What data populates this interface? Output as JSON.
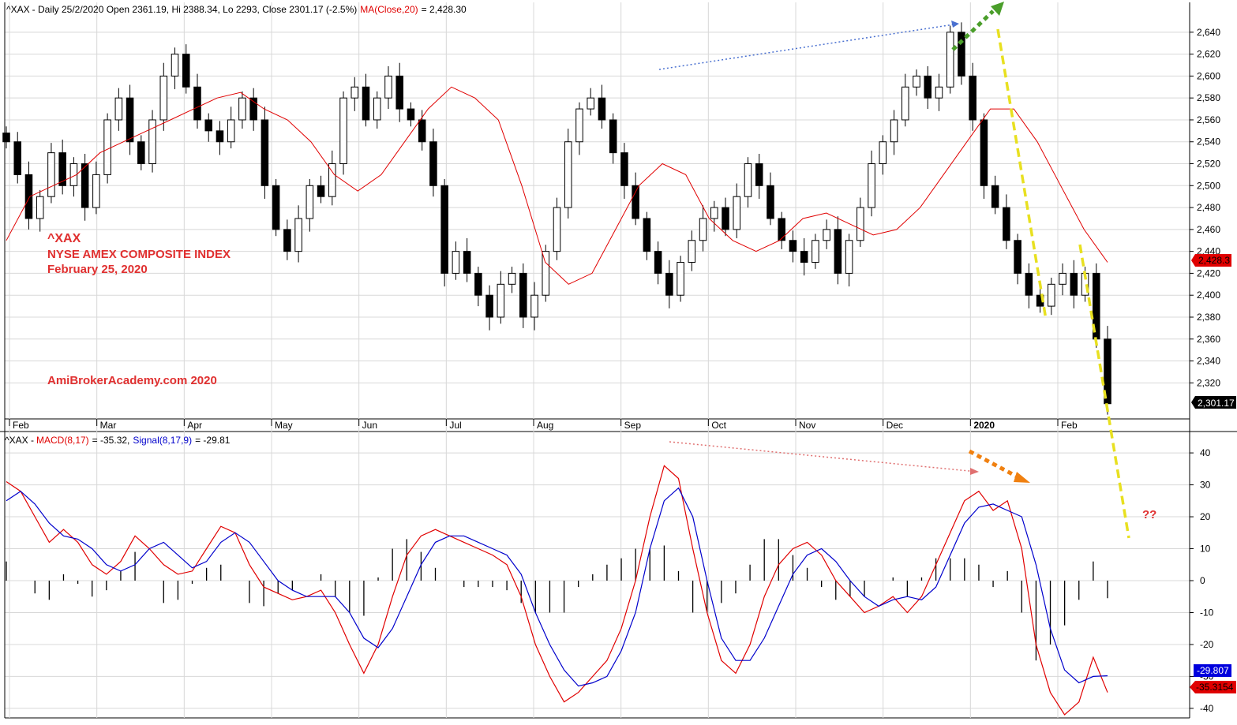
{
  "header": {
    "symbol": "^XAX",
    "info": "- Daily 25/2/2020 Open 2361.19, Hi 2388.34, Lo 2293, Close 2301.17 (-2.5%)",
    "ma_label": "MA(Close,20)",
    "ma_value": "= 2,428.30"
  },
  "macd_header": {
    "symbol": "^XAX -",
    "macd_label": "MACD(8,17)",
    "macd_value": "= -35.32,",
    "signal_label": "Signal(8,17,9)",
    "signal_value": "= -29.81"
  },
  "annotations": {
    "ticker": "^XAX",
    "index_name": "NYSE AMEX COMPOSITE INDEX",
    "date": "February 25, 2020",
    "watermark": "AmiBrokerAcademy.com  2020",
    "question": "??"
  },
  "badges": {
    "ma_price": "2,428.3",
    "last_price": "2,301.17",
    "signal_value": "-29.807",
    "macd_value": "-35.3154"
  },
  "colors": {
    "candle": "#000000",
    "ma_line": "#e00000",
    "macd_line": "#e00000",
    "signal_line": "#0000cc",
    "histogram": "#000000",
    "trend_yellow": "#e8e020",
    "arrow_green": "#4a9e2a",
    "arrow_orange": "#f08010",
    "divergence_blue": "#4a70d0",
    "divergence_red": "#e07070",
    "note_red": "#e03030",
    "grid": "#d8d8d8"
  },
  "chart_data": [
    {
      "type": "candlestick",
      "title": "^XAX - Daily 25/2/2020",
      "x_labels": [
        "Feb",
        "Mar",
        "Apr",
        "May",
        "Jun",
        "Jul",
        "Aug",
        "Sep",
        "Oct",
        "Nov",
        "Dec",
        "2020",
        "Feb"
      ],
      "y_ticks": [
        2320,
        2340,
        2360,
        2380,
        2400,
        2420,
        2440,
        2460,
        2480,
        2500,
        2520,
        2540,
        2560,
        2580,
        2600,
        2620,
        2640
      ],
      "y_tick_labels": [
        "2,320",
        "2,340",
        "2,360",
        "2,380",
        "2,400",
        "2,420",
        "2,440",
        "2,460",
        "2,480",
        "2,500",
        "2,520",
        "2,540",
        "2,560",
        "2,580",
        "2,600",
        "2,620",
        "2,640"
      ],
      "ylim": [
        2290,
        2655
      ],
      "series": [
        {
          "name": "^XAX close (approx. trajectory)",
          "values": [
            2540,
            2510,
            2470,
            2490,
            2530,
            2500,
            2520,
            2480,
            2510,
            2560,
            2580,
            2540,
            2520,
            2560,
            2600,
            2620,
            2590,
            2560,
            2550,
            2540,
            2560,
            2580,
            2560,
            2500,
            2460,
            2440,
            2470,
            2500,
            2490,
            2520,
            2580,
            2590,
            2560,
            2580,
            2600,
            2570,
            2560,
            2540,
            2500,
            2420,
            2440,
            2420,
            2400,
            2380,
            2410,
            2420,
            2380,
            2400,
            2440,
            2480,
            2540,
            2570,
            2580,
            2560,
            2530,
            2500,
            2470,
            2440,
            2420,
            2400,
            2430,
            2450,
            2470,
            2480,
            2460,
            2490,
            2520,
            2500,
            2470,
            2450,
            2440,
            2430,
            2450,
            2460,
            2420,
            2450,
            2480,
            2520,
            2540,
            2560,
            2590,
            2600,
            2580,
            2590,
            2640,
            2600,
            2560,
            2500,
            2480,
            2450,
            2420,
            2400,
            2390,
            2410,
            2420,
            2400,
            2420,
            2360,
            2301
          ]
        },
        {
          "name": "MA(Close,20)",
          "values": [
            2450,
            2490,
            2500,
            2510,
            2530,
            2540,
            2550,
            2560,
            2570,
            2580,
            2585,
            2570,
            2560,
            2540,
            2510,
            2495,
            2510,
            2540,
            2570,
            2590,
            2580,
            2560,
            2500,
            2430,
            2410,
            2420,
            2460,
            2500,
            2520,
            2510,
            2470,
            2450,
            2440,
            2450,
            2470,
            2475,
            2465,
            2455,
            2460,
            2480,
            2510,
            2540,
            2570,
            2570,
            2540,
            2500,
            2460,
            2430
          ]
        }
      ]
    },
    {
      "type": "line",
      "title": "MACD(8,17)",
      "y_ticks": [
        -40,
        -30,
        -20,
        -10,
        0,
        10,
        20,
        30,
        40
      ],
      "ylim": [
        -42,
        42
      ],
      "series": [
        {
          "name": "MACD(8,17)",
          "values": [
            31,
            28,
            20,
            12,
            16,
            12,
            5,
            2,
            6,
            14,
            10,
            5,
            2,
            3,
            10,
            17,
            15,
            5,
            -2,
            -4,
            -6,
            -5,
            -3,
            -10,
            -20,
            -29,
            -20,
            -5,
            8,
            14,
            16,
            14,
            12,
            10,
            8,
            5,
            -5,
            -20,
            -30,
            -38,
            -35,
            -30,
            -25,
            -15,
            0,
            20,
            36,
            32,
            10,
            -10,
            -25,
            -29,
            -20,
            -5,
            5,
            10,
            12,
            8,
            0,
            -5,
            -10,
            -8,
            -5,
            -10,
            -5,
            5,
            15,
            25,
            28,
            22,
            25,
            10,
            -20,
            -35,
            -42,
            -38,
            -24,
            -35
          ]
        },
        {
          "name": "Signal(8,17,9)",
          "values": [
            25,
            28,
            24,
            18,
            14,
            13,
            10,
            5,
            3,
            5,
            10,
            12,
            8,
            4,
            6,
            12,
            15,
            12,
            6,
            0,
            -3,
            -5,
            -5,
            -5,
            -10,
            -18,
            -21,
            -15,
            -5,
            5,
            12,
            14,
            14,
            12,
            10,
            8,
            2,
            -10,
            -20,
            -28,
            -33,
            -32,
            -30,
            -22,
            -10,
            10,
            25,
            29,
            20,
            0,
            -18,
            -25,
            -25,
            -18,
            -8,
            2,
            8,
            10,
            6,
            0,
            -5,
            -8,
            -6,
            -5,
            -6,
            -2,
            8,
            18,
            23,
            24,
            22,
            20,
            5,
            -15,
            -28,
            -32,
            -30,
            -29.8
          ]
        },
        {
          "name": "Histogram",
          "values": [
            6,
            0,
            -4,
            -6,
            2,
            -1,
            -5,
            -3,
            3,
            9,
            0,
            -7,
            -6,
            -1,
            4,
            5,
            0,
            -7,
            -8,
            -4,
            -3,
            0,
            2,
            -5,
            -10,
            -11,
            1,
            10,
            13,
            9,
            4,
            0,
            -2,
            -2,
            -2,
            -3,
            -7,
            -10,
            -10,
            -10,
            -2,
            2,
            5,
            7,
            10,
            10,
            11,
            3,
            -10,
            -10,
            -7,
            -4,
            5,
            13,
            13,
            8,
            4,
            -2,
            -6,
            -5,
            -5,
            0,
            1,
            -5,
            1,
            7,
            7,
            7,
            5,
            -2,
            3,
            -10,
            -25,
            -20,
            -14,
            -6,
            6,
            -5.5
          ]
        }
      ]
    }
  ]
}
